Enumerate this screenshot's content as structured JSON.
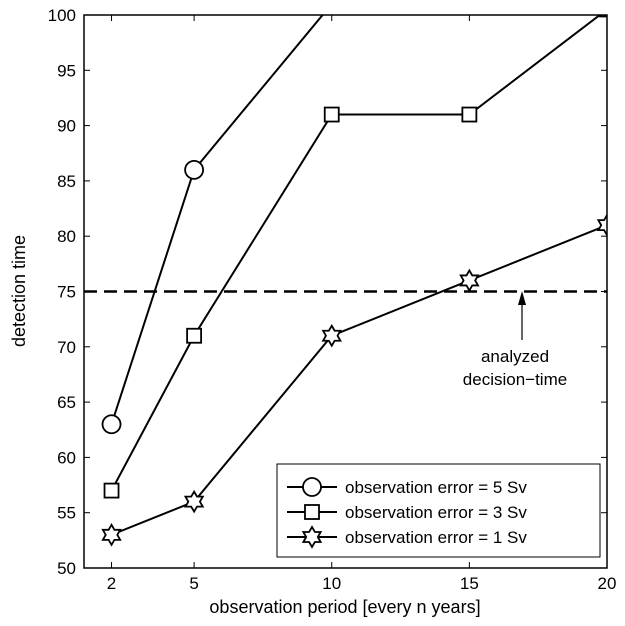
{
  "chart_data": {
    "type": "line",
    "xlabel": "observation period [every n years]",
    "ylabel": "detection time",
    "xlim": [
      1,
      20
    ],
    "ylim": [
      50,
      100
    ],
    "x_ticks": [
      2,
      5,
      10,
      15,
      20
    ],
    "y_ticks": [
      50,
      55,
      60,
      65,
      70,
      75,
      80,
      85,
      90,
      95,
      100
    ],
    "grid": false,
    "legend_position": "bottom-right",
    "series": [
      {
        "name": "observation error = 5 Sv",
        "marker": "circle",
        "x": [
          2,
          5,
          10
        ],
        "y": [
          63,
          86,
          101
        ]
      },
      {
        "name": "observation error = 3 Sv",
        "marker": "square",
        "x": [
          2,
          5,
          10,
          15,
          20
        ],
        "y": [
          57,
          71,
          91,
          91,
          100.5
        ]
      },
      {
        "name": "observation error = 1 Sv",
        "marker": "hexagram",
        "x": [
          2,
          5,
          10,
          15,
          20
        ],
        "y": [
          53,
          56,
          71,
          76,
          81
        ]
      }
    ],
    "reference_line": {
      "y": 75,
      "style": "dashed"
    },
    "annotation": {
      "lines": [
        "analyzed",
        "decision−time"
      ],
      "arrow_x": 17,
      "arrow_y": 75
    }
  }
}
